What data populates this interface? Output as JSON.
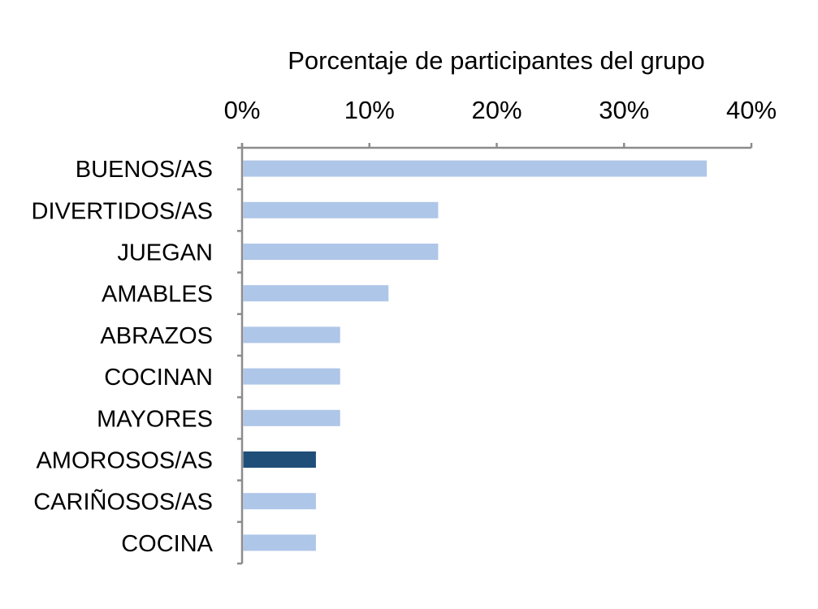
{
  "chart_data": {
    "type": "bar",
    "orientation": "horizontal",
    "title": "",
    "xlabel": "Porcentaje de participantes del grupo",
    "ylabel": "",
    "x_axis_position": "top",
    "xlim": [
      0,
      40
    ],
    "x_ticks": [
      0,
      10,
      20,
      30,
      40
    ],
    "x_tick_labels": [
      "0%",
      "10%",
      "20%",
      "30%",
      "40%"
    ],
    "grid": false,
    "legend": "none",
    "categories": [
      "BUENOS/AS",
      "DIVERTIDOS/AS",
      "JUEGAN",
      "AMABLES",
      "ABRAZOS",
      "COCINAN",
      "MAYORES",
      "AMOROSOS/AS",
      "CARIÑOSOS/AS",
      "COCINA"
    ],
    "values": [
      36.5,
      15.4,
      15.4,
      11.5,
      7.7,
      7.7,
      7.7,
      5.8,
      5.8,
      5.8
    ],
    "highlighted_category": "AMOROSOS/AS",
    "colors": {
      "bar": "#aec6e8",
      "highlight": "#1f4e79",
      "axis": "#8c8c8c"
    }
  }
}
